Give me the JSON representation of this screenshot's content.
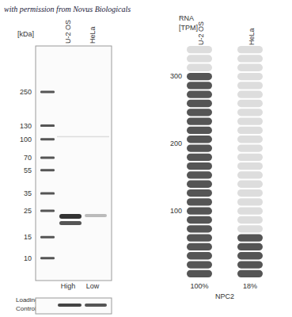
{
  "watermark": "with permission from Novus Biologicals",
  "blot": {
    "unit": "[kDa]",
    "lanes": [
      "U-2 OS",
      "HeLa"
    ],
    "markers": [
      250,
      130,
      100,
      70,
      55,
      35,
      25,
      15,
      10
    ],
    "lane_notes": [
      "High",
      "Low"
    ],
    "loading_control": [
      "Loading",
      "Control"
    ]
  },
  "chart_data": {
    "type": "bar",
    "title": "NPC2",
    "ylabel": [
      "RNA",
      "[TPM]"
    ],
    "categories": [
      "U-2 OS",
      "HeLa"
    ],
    "values": [
      305,
      55
    ],
    "color": "#555555",
    "ylim": [
      0,
      346
    ],
    "yticks": [
      100,
      200,
      300
    ],
    "tick_labels": "y",
    "relative_labels": [
      "100%",
      "18%"
    ]
  }
}
